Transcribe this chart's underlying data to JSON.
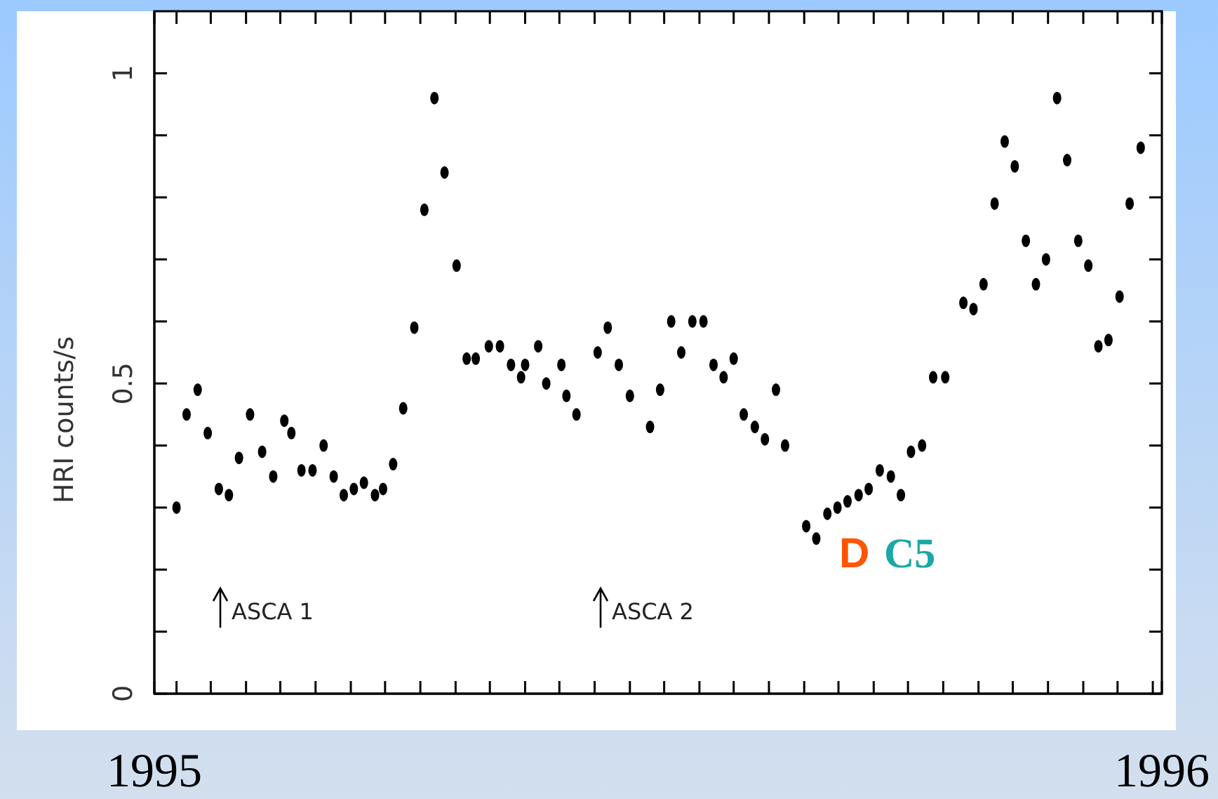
{
  "chart_data": {
    "type": "scatter",
    "ylabel": "HRI counts/s",
    "xlim": [
      1995,
      1996
    ],
    "ylim": [
      0,
      1.1
    ],
    "xticks": [
      1995,
      {
        "value": 1995.022,
        "label": null
      },
      {
        "value": 1995.056,
        "label": null
      },
      {
        "value": 1995.091,
        "label": null
      },
      {
        "value": 1995.125,
        "label": null
      },
      {
        "value": 1995.16,
        "label": null
      },
      {
        "value": 1995.195,
        "label": null
      },
      {
        "value": 1995.229,
        "label": null
      },
      {
        "value": 1995.264,
        "label": null
      },
      {
        "value": 1995.299,
        "label": null
      },
      {
        "value": 1995.333,
        "label": null
      },
      {
        "value": 1995.368,
        "label": null
      },
      {
        "value": 1995.402,
        "label": null
      },
      {
        "value": 1995.437,
        "label": null
      },
      {
        "value": 1995.472,
        "label": null
      },
      {
        "value": 1995.506,
        "label": null
      },
      {
        "value": 1995.541,
        "label": null
      },
      {
        "value": 1995.575,
        "label": null
      },
      {
        "value": 1995.61,
        "label": null
      },
      {
        "value": 1995.645,
        "label": null
      },
      {
        "value": 1995.679,
        "label": null
      },
      {
        "value": 1995.714,
        "label": null
      },
      {
        "value": 1995.748,
        "label": null
      },
      {
        "value": 1995.783,
        "label": null
      },
      {
        "value": 1995.818,
        "label": null
      },
      {
        "value": 1995.852,
        "label": null
      },
      {
        "value": 1995.887,
        "label": null
      },
      {
        "value": 1995.922,
        "label": null
      },
      {
        "value": 1995.956,
        "label": null
      },
      {
        "value": 1995.991,
        "label": null
      },
      1996
    ],
    "yticks": [
      0,
      {
        "value": 0.1,
        "label": null
      },
      {
        "value": 0.2,
        "label": null
      },
      {
        "value": 0.3,
        "label": null
      },
      {
        "value": 0.4,
        "label": null
      },
      0.5,
      {
        "value": 0.6,
        "label": null
      },
      {
        "value": 0.7,
        "label": null
      },
      {
        "value": 0.8,
        "label": null
      },
      {
        "value": 0.9,
        "label": null
      },
      1
    ],
    "marker": "circle",
    "annotations": [
      "ASCA 1",
      "ASCA 2",
      "D",
      "C5"
    ],
    "series": [
      {
        "color": "#000000",
        "x": [
          1995.022,
          1995.032,
          1995.043,
          1995.053,
          1995.064,
          1995.074,
          1995.084,
          1995.095,
          1995.107,
          1995.118,
          1995.129,
          1995.136,
          1995.146,
          1995.157,
          1995.168,
          1995.178,
          1995.188,
          1995.198,
          1995.208,
          1995.219,
          1995.227,
          1995.237,
          1995.247,
          1995.258,
          1995.268,
          1995.278,
          1995.288,
          1995.3,
          1995.31,
          1995.319,
          1995.332,
          1995.343,
          1995.354,
          1995.364,
          1995.368,
          1995.381,
          1995.389,
          1995.404,
          1995.409,
          1995.419,
          1995.44,
          1995.45,
          1995.461,
          1995.472,
          1995.492,
          1995.502,
          1995.513,
          1995.523,
          1995.534,
          1995.545,
          1995.555,
          1995.565,
          1995.575,
          1995.585,
          1995.596,
          1995.606,
          1995.617,
          1995.626,
          1995.647,
          1995.657,
          1995.668,
          1995.678,
          1995.688,
          1995.699,
          1995.709,
          1995.72,
          1995.731,
          1995.741,
          1995.751,
          1995.762,
          1995.773,
          1995.785,
          1995.803,
          1995.813,
          1995.823,
          1995.834,
          1995.844,
          1995.854,
          1995.865,
          1995.875,
          1995.885,
          1995.896,
          1995.906,
          1995.917,
          1995.927,
          1995.937,
          1995.947,
          1995.958,
          1995.968,
          1995.979
        ],
        "values": [
          0.3,
          0.45,
          0.49,
          0.42,
          0.33,
          0.32,
          0.38,
          0.45,
          0.39,
          0.35,
          0.44,
          0.42,
          0.36,
          0.36,
          0.4,
          0.35,
          0.32,
          0.33,
          0.34,
          0.32,
          0.33,
          0.37,
          0.46,
          0.59,
          0.78,
          0.96,
          0.84,
          0.69,
          0.54,
          0.54,
          0.56,
          0.56,
          0.53,
          0.51,
          0.53,
          0.56,
          0.5,
          0.53,
          0.48,
          0.45,
          0.55,
          0.59,
          0.53,
          0.48,
          0.43,
          0.49,
          0.6,
          0.55,
          0.6,
          0.6,
          0.53,
          0.51,
          0.54,
          0.45,
          0.43,
          0.41,
          0.49,
          0.4,
          0.27,
          0.25,
          0.29,
          0.3,
          0.31,
          0.32,
          0.33,
          0.36,
          0.35,
          0.32,
          0.39,
          0.4,
          0.51,
          0.51,
          0.63,
          0.62,
          0.66,
          0.79,
          0.89,
          0.85,
          0.73,
          0.66,
          0.7,
          0.96,
          0.86,
          0.73,
          0.69,
          0.56,
          0.57,
          0.64,
          0.79,
          0.88
        ]
      }
    ]
  }
}
